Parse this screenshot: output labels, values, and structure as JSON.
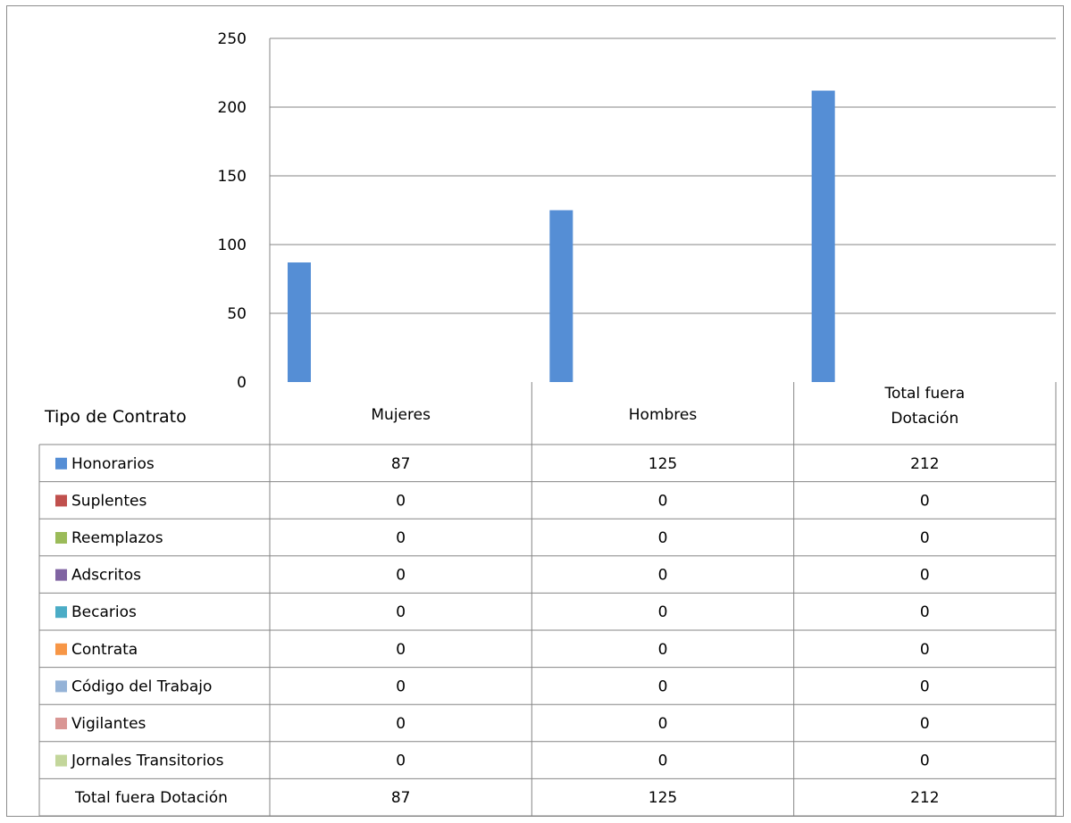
{
  "chart_data": {
    "type": "bar",
    "title": "",
    "table_header": "Tipo de Contrato",
    "categories": [
      "Mujeres",
      "Hombres",
      "Total fuera\nDotación"
    ],
    "ylim": [
      0,
      250
    ],
    "yticks": [
      0,
      50,
      100,
      150,
      200,
      250
    ],
    "grid": true,
    "series": [
      {
        "name": "Honorarios",
        "color": "#558ed5",
        "values": [
          87,
          125,
          212
        ]
      },
      {
        "name": "Suplentes",
        "color": "#c0504d",
        "values": [
          0,
          0,
          0
        ]
      },
      {
        "name": "Reemplazos",
        "color": "#9bbb59",
        "values": [
          0,
          0,
          0
        ]
      },
      {
        "name": "Adscritos",
        "color": "#8064a2",
        "values": [
          0,
          0,
          0
        ]
      },
      {
        "name": "Becarios",
        "color": "#4bacc6",
        "values": [
          0,
          0,
          0
        ]
      },
      {
        "name": "Contrata",
        "color": "#f79646",
        "values": [
          0,
          0,
          0
        ]
      },
      {
        "name": "Código del Trabajo",
        "color": "#95b3d7",
        "values": [
          0,
          0,
          0
        ]
      },
      {
        "name": "Vigilantes",
        "color": "#d99694",
        "values": [
          0,
          0,
          0
        ]
      },
      {
        "name": "Jornales Transitorios",
        "color": "#c3d69b",
        "values": [
          0,
          0,
          0
        ]
      }
    ],
    "total_row": {
      "name": "Total fuera Dotación",
      "values": [
        87,
        125,
        212
      ]
    }
  }
}
